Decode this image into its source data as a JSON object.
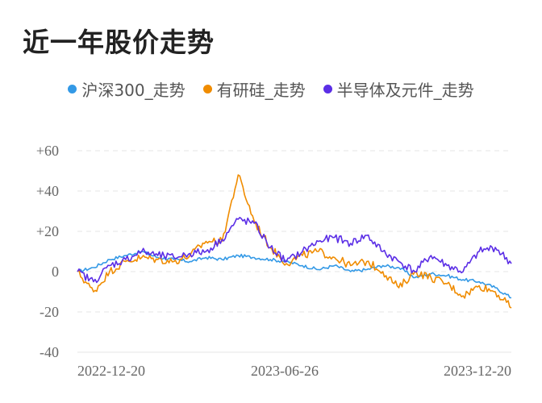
{
  "title": "近一年股价走势",
  "colors": {
    "hs300": "#3399e6",
    "yougui": "#f08c00",
    "semi": "#5b2ee6",
    "grid": "#e6e6e6"
  },
  "legend": [
    {
      "label": "沪深300_走势",
      "color": "#3399e6"
    },
    {
      "label": "有研硅_走势",
      "color": "#f08c00"
    },
    {
      "label": "半导体及元件_走势",
      "color": "#5b2ee6"
    }
  ],
  "chart_data": {
    "type": "line",
    "title": "近一年股价走势",
    "xlabel": "",
    "ylabel": "",
    "ylim": [
      -40,
      60
    ],
    "yticks": [
      "+60",
      "+40",
      "+20",
      "0",
      "-20",
      "-40"
    ],
    "xticks": [
      "2022-12-20",
      "2023-06-26",
      "2023-12-20"
    ],
    "x": [
      "2022-12-20",
      "2023-01-03",
      "2023-01-17",
      "2023-01-31",
      "2023-02-14",
      "2023-02-28",
      "2023-03-14",
      "2023-03-28",
      "2023-04-11",
      "2023-04-25",
      "2023-05-09",
      "2023-05-16",
      "2023-05-23",
      "2023-06-06",
      "2023-06-20",
      "2023-07-04",
      "2023-07-18",
      "2023-08-01",
      "2023-08-15",
      "2023-08-29",
      "2023-09-12",
      "2023-09-26",
      "2023-10-10",
      "2023-10-24",
      "2023-11-07",
      "2023-11-21",
      "2023-12-05",
      "2023-12-20"
    ],
    "series": [
      {
        "name": "沪深300_走势",
        "color": "#3399e6",
        "values": [
          0,
          2,
          6,
          8,
          10,
          7,
          6,
          5,
          7,
          6,
          8,
          7,
          6,
          5,
          3,
          1,
          3,
          0,
          1,
          3,
          2,
          -3,
          -1,
          -2,
          -4,
          -5,
          -8,
          -13
        ]
      },
      {
        "name": "有研硅_走势",
        "color": "#f08c00",
        "values": [
          0,
          -10,
          0,
          5,
          7,
          6,
          5,
          8,
          15,
          15,
          48,
          25,
          12,
          4,
          8,
          10,
          7,
          3,
          5,
          0,
          -8,
          0,
          -3,
          -6,
          -12,
          -7,
          -10,
          -18
        ]
      },
      {
        "name": "半导体及元件_走势",
        "color": "#5b2ee6",
        "values": [
          0,
          -5,
          3,
          6,
          10,
          8,
          7,
          9,
          10,
          16,
          26,
          24,
          12,
          5,
          10,
          15,
          17,
          14,
          18,
          10,
          5,
          0,
          8,
          3,
          0,
          10,
          12,
          4
        ]
      }
    ],
    "grid": true
  }
}
